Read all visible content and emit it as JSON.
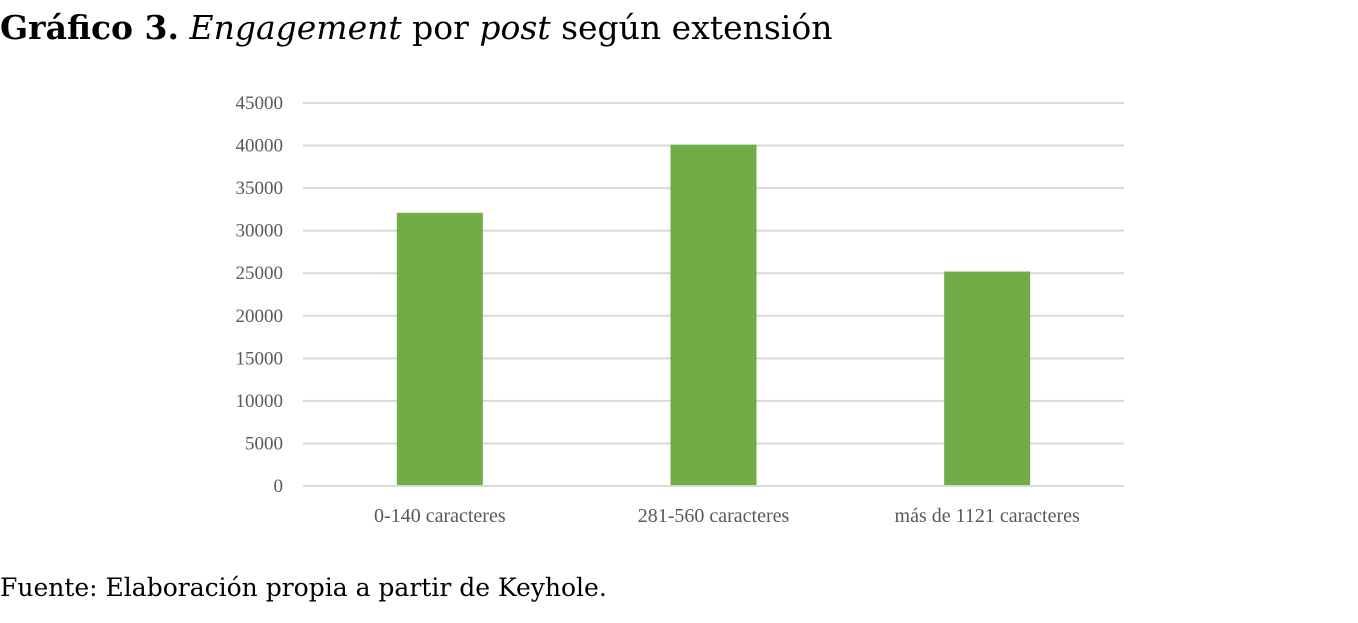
{
  "caption": {
    "number": "Gráfico 3.",
    "word1": "Engagement",
    "word2": " por ",
    "word3": "post",
    "word4": " según extensión"
  },
  "source": "Fuente: Elaboración propia a partir de Keyhole.",
  "colors": {
    "bar": "#70ad47",
    "grid": "#d9d9d9",
    "tick_text": "#595959"
  },
  "chart_data": {
    "type": "bar",
    "title": "Gráfico 3. Engagement por post según extensión",
    "categories": [
      "0-140 caracteres",
      "281-560 caracteres",
      "más de 1121 caracteres"
    ],
    "values": [
      32100,
      40100,
      25200
    ],
    "xlabel": "",
    "ylabel": "",
    "ylim": [
      0,
      45000
    ],
    "yticks": [
      0,
      5000,
      10000,
      15000,
      20000,
      25000,
      30000,
      35000,
      40000,
      45000
    ],
    "ytick_labels": [
      "0",
      "5000",
      "10000",
      "15000",
      "20000",
      "25000",
      "30000",
      "35000",
      "40000",
      "45000"
    ],
    "grid": true,
    "legend": "none"
  }
}
